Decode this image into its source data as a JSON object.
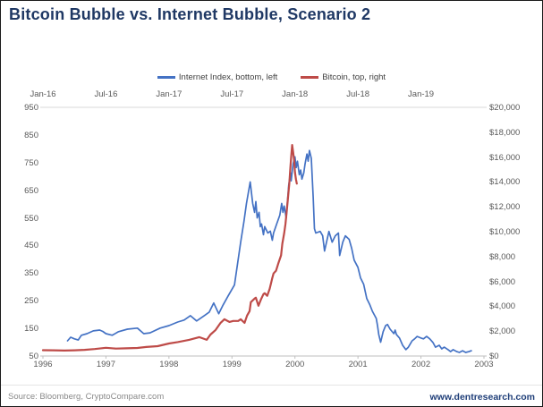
{
  "header": {
    "title": "Bitcoin Bubble vs. Internet Bubble, Scenario 2"
  },
  "footer": {
    "source": "Source: Bloomberg, CryptoCompare.com",
    "website": "www.dentresearch.com"
  },
  "chart_data": {
    "type": "line",
    "title": "Bitcoin Bubble vs. Internet Bubble, Scenario 2",
    "grid": false,
    "legend_position": "top-center",
    "axes": {
      "top": {
        "ticks": [
          "Jan-16",
          "Jul-16",
          "Jan-17",
          "Jul-17",
          "Jan-18",
          "Jul-18",
          "Jan-19"
        ],
        "domain": [
          2016,
          2019.5
        ]
      },
      "bottom": {
        "ticks": [
          "1996",
          "1997",
          "1998",
          "1999",
          "2000",
          "2001",
          "2002",
          "2003"
        ],
        "domain": [
          1996,
          2003
        ]
      },
      "left": {
        "ticks": [
          "950",
          "850",
          "750",
          "650",
          "550",
          "450",
          "350",
          "250",
          "150",
          "50"
        ],
        "range": [
          50,
          950
        ]
      },
      "right": {
        "ticks": [
          "$20,000",
          "$18,000",
          "$16,000",
          "$14,000",
          "$12,000",
          "$10,000",
          "$8,000",
          "$6,000",
          "$4,000",
          "$2,000",
          "$0"
        ],
        "range": [
          0,
          20000
        ]
      }
    },
    "series": [
      {
        "name": "Internet Index, bottom, left",
        "color": "#4472C4",
        "width": 1.7,
        "x_axis": "bottom",
        "y_axis": "left",
        "x_domain": [
          1996,
          2003
        ],
        "y_domain": [
          50,
          950
        ],
        "points": [
          [
            1996.39,
            105
          ],
          [
            1996.44,
            118
          ],
          [
            1996.5,
            112
          ],
          [
            1996.56,
            108
          ],
          [
            1996.61,
            125
          ],
          [
            1996.7,
            131
          ],
          [
            1996.8,
            141
          ],
          [
            1996.9,
            144
          ],
          [
            1996.95,
            139
          ],
          [
            1997.0,
            131
          ],
          [
            1997.1,
            125
          ],
          [
            1997.2,
            138
          ],
          [
            1997.34,
            147
          ],
          [
            1997.5,
            151
          ],
          [
            1997.6,
            131
          ],
          [
            1997.7,
            134
          ],
          [
            1997.86,
            151
          ],
          [
            1998.0,
            160
          ],
          [
            1998.14,
            173
          ],
          [
            1998.24,
            180
          ],
          [
            1998.34,
            196
          ],
          [
            1998.44,
            177
          ],
          [
            1998.56,
            196
          ],
          [
            1998.64,
            209
          ],
          [
            1998.71,
            242
          ],
          [
            1998.79,
            203
          ],
          [
            1998.86,
            235
          ],
          [
            1998.94,
            268
          ],
          [
            1999.04,
            307
          ],
          [
            1999.14,
            463
          ],
          [
            1999.19,
            537
          ],
          [
            1999.23,
            602
          ],
          [
            1999.29,
            680
          ],
          [
            1999.33,
            602
          ],
          [
            1999.36,
            570
          ],
          [
            1999.38,
            609
          ],
          [
            1999.4,
            550
          ],
          [
            1999.43,
            570
          ],
          [
            1999.45,
            518
          ],
          [
            1999.47,
            528
          ],
          [
            1999.5,
            489
          ],
          [
            1999.52,
            518
          ],
          [
            1999.57,
            495
          ],
          [
            1999.61,
            502
          ],
          [
            1999.64,
            469
          ],
          [
            1999.66,
            495
          ],
          [
            1999.71,
            528
          ],
          [
            1999.76,
            560
          ],
          [
            1999.79,
            602
          ],
          [
            1999.81,
            570
          ],
          [
            1999.83,
            593
          ],
          [
            1999.86,
            550
          ],
          [
            1999.9,
            667
          ],
          [
            1999.93,
            713
          ],
          [
            1999.94,
            684
          ],
          [
            1999.97,
            745
          ],
          [
            2000.0,
            771
          ],
          [
            2000.02,
            732
          ],
          [
            2000.04,
            755
          ],
          [
            2000.07,
            706
          ],
          [
            2000.09,
            723
          ],
          [
            2000.11,
            690
          ],
          [
            2000.14,
            713
          ],
          [
            2000.16,
            745
          ],
          [
            2000.19,
            781
          ],
          [
            2000.21,
            755
          ],
          [
            2000.23,
            794
          ],
          [
            2000.26,
            765
          ],
          [
            2000.29,
            625
          ],
          [
            2000.31,
            511
          ],
          [
            2000.33,
            495
          ],
          [
            2000.4,
            501
          ],
          [
            2000.44,
            485
          ],
          [
            2000.47,
            430
          ],
          [
            2000.54,
            501
          ],
          [
            2000.59,
            462
          ],
          [
            2000.64,
            485
          ],
          [
            2000.69,
            495
          ],
          [
            2000.71,
            414
          ],
          [
            2000.76,
            462
          ],
          [
            2000.8,
            485
          ],
          [
            2000.86,
            472
          ],
          [
            2000.9,
            440
          ],
          [
            2000.94,
            397
          ],
          [
            2001.0,
            371
          ],
          [
            2001.04,
            333
          ],
          [
            2001.09,
            310
          ],
          [
            2001.14,
            258
          ],
          [
            2001.19,
            235
          ],
          [
            2001.23,
            212
          ],
          [
            2001.29,
            186
          ],
          [
            2001.31,
            160
          ],
          [
            2001.33,
            128
          ],
          [
            2001.36,
            100
          ],
          [
            2001.4,
            138
          ],
          [
            2001.44,
            160
          ],
          [
            2001.47,
            164
          ],
          [
            2001.51,
            147
          ],
          [
            2001.57,
            131
          ],
          [
            2001.59,
            144
          ],
          [
            2001.61,
            128
          ],
          [
            2001.66,
            115
          ],
          [
            2001.71,
            89
          ],
          [
            2001.76,
            73
          ],
          [
            2001.8,
            82
          ],
          [
            2001.86,
            105
          ],
          [
            2001.9,
            112
          ],
          [
            2001.94,
            121
          ],
          [
            2002.0,
            115
          ],
          [
            2002.04,
            112
          ],
          [
            2002.09,
            121
          ],
          [
            2002.14,
            112
          ],
          [
            2002.19,
            99
          ],
          [
            2002.23,
            82
          ],
          [
            2002.29,
            89
          ],
          [
            2002.33,
            76
          ],
          [
            2002.37,
            82
          ],
          [
            2002.43,
            73
          ],
          [
            2002.47,
            66
          ],
          [
            2002.51,
            73
          ],
          [
            2002.57,
            66
          ],
          [
            2002.61,
            63
          ],
          [
            2002.66,
            69
          ],
          [
            2002.71,
            63
          ],
          [
            2002.76,
            66
          ],
          [
            2002.8,
            69
          ]
        ]
      },
      {
        "name": "Bitcoin, top, right",
        "color": "#BE4B48",
        "width": 2.2,
        "x_axis": "top",
        "y_axis": "right",
        "x_domain": [
          2016,
          2019.5
        ],
        "y_domain": [
          0,
          20000
        ],
        "points": [
          [
            2016.0,
            470
          ],
          [
            2016.08,
            460
          ],
          [
            2016.17,
            440
          ],
          [
            2016.25,
            460
          ],
          [
            2016.33,
            500
          ],
          [
            2016.41,
            560
          ],
          [
            2016.5,
            660
          ],
          [
            2016.58,
            600
          ],
          [
            2016.66,
            620
          ],
          [
            2016.75,
            650
          ],
          [
            2016.82,
            730
          ],
          [
            2016.91,
            790
          ],
          [
            2017.0,
            1010
          ],
          [
            2017.07,
            1120
          ],
          [
            2017.16,
            1300
          ],
          [
            2017.24,
            1520
          ],
          [
            2017.3,
            1300
          ],
          [
            2017.33,
            1730
          ],
          [
            2017.37,
            2090
          ],
          [
            2017.41,
            2670
          ],
          [
            2017.44,
            2960
          ],
          [
            2017.48,
            2740
          ],
          [
            2017.51,
            2820
          ],
          [
            2017.55,
            2820
          ],
          [
            2017.57,
            2960
          ],
          [
            2017.6,
            2670
          ],
          [
            2017.62,
            3250
          ],
          [
            2017.64,
            3610
          ],
          [
            2017.65,
            4330
          ],
          [
            2017.68,
            4620
          ],
          [
            2017.69,
            4690
          ],
          [
            2017.71,
            4040
          ],
          [
            2017.73,
            4550
          ],
          [
            2017.75,
            4980
          ],
          [
            2017.76,
            5050
          ],
          [
            2017.78,
            4840
          ],
          [
            2017.8,
            5420
          ],
          [
            2017.82,
            6280
          ],
          [
            2017.83,
            6640
          ],
          [
            2017.85,
            6860
          ],
          [
            2017.87,
            7510
          ],
          [
            2017.89,
            8090
          ],
          [
            2017.9,
            9030
          ],
          [
            2017.915,
            9890
          ],
          [
            2017.925,
            10610
          ],
          [
            2017.935,
            11700
          ],
          [
            2017.945,
            12780
          ],
          [
            2017.955,
            13860
          ],
          [
            2017.962,
            14950
          ],
          [
            2017.97,
            16030
          ],
          [
            2017.978,
            16970
          ],
          [
            2017.986,
            16390
          ],
          [
            2017.994,
            15670
          ],
          [
            2018.0,
            14800
          ],
          [
            2018.008,
            14220
          ],
          [
            2018.015,
            13860
          ]
        ]
      }
    ]
  }
}
